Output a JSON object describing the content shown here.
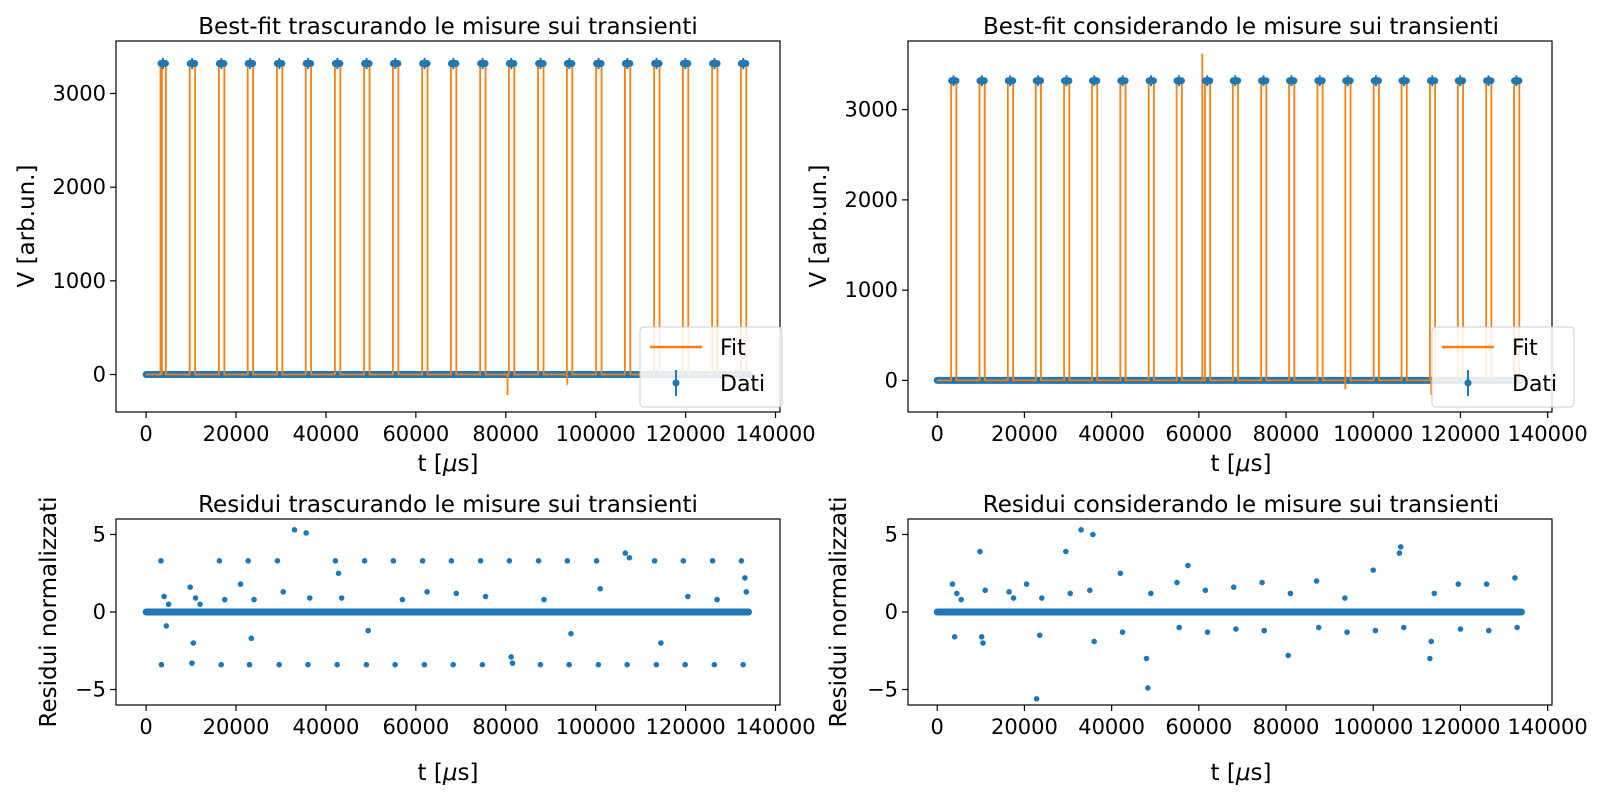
{
  "colors": {
    "fit": "#ff7f0e",
    "data": "#1f77b4",
    "frame": "#000000",
    "legend_frame": "#cccccc"
  },
  "chart_data": [
    {
      "id": "fit-no-transients",
      "type": "line",
      "title": "Best-fit trascurando le misure sui transienti",
      "xlabel": "t [μs]",
      "ylabel": "V [arb.un.]",
      "xlim": [
        -6700,
        141000
      ],
      "ylim": [
        -400,
        3560
      ],
      "xticks": [
        0,
        20000,
        40000,
        60000,
        80000,
        100000,
        120000,
        140000
      ],
      "xtick_labels": [
        "0",
        "20000",
        "40000",
        "60000",
        "80000",
        "100000",
        "120000",
        "140000"
      ],
      "yticks": [
        0,
        1000,
        2000,
        3000
      ],
      "ytick_labels": [
        "0",
        "1000",
        "2000",
        "3000"
      ],
      "grid": false,
      "legend": {
        "position": "lower-right",
        "entries": [
          "Fit",
          "Dati"
        ]
      },
      "series": [
        {
          "name": "Fit",
          "kind": "square-wave",
          "low": 0,
          "high": 3320,
          "pulse_starts": [
            3200,
            9700,
            16200,
            22600,
            29100,
            35500,
            42000,
            48500,
            54900,
            61400,
            67800,
            74300,
            80700,
            87200,
            93600,
            100100,
            106500,
            113000,
            119400,
            125900,
            132300
          ],
          "pulse_width": 1200,
          "spikes": [
            [
              3500,
              3360
            ],
            [
              80400,
              -220
            ],
            [
              93700,
              -110
            ]
          ]
        },
        {
          "name": "Dati",
          "kind": "points-with-error",
          "low": 0,
          "high": 3320,
          "x_range": [
            0,
            134000
          ]
        }
      ]
    },
    {
      "id": "fit-with-transients",
      "type": "line",
      "title": "Best-fit considerando le misure sui transienti",
      "xlabel": "t [μs]",
      "ylabel": "V [arb.un.]",
      "xlim": [
        -6700,
        141000
      ],
      "ylim": [
        -350,
        3760
      ],
      "xticks": [
        0,
        20000,
        40000,
        60000,
        80000,
        100000,
        120000,
        140000
      ],
      "xtick_labels": [
        "0",
        "20000",
        "40000",
        "60000",
        "80000",
        "100000",
        "120000",
        "140000"
      ],
      "yticks": [
        0,
        1000,
        2000,
        3000
      ],
      "ytick_labels": [
        "0",
        "1000",
        "2000",
        "3000"
      ],
      "grid": false,
      "legend": {
        "position": "lower-right",
        "entries": [
          "Fit",
          "Dati"
        ]
      },
      "series": [
        {
          "name": "Fit",
          "kind": "square-wave",
          "low": 0,
          "high": 3320,
          "pulse_starts": [
            3200,
            9700,
            16200,
            22600,
            29100,
            35500,
            42000,
            48500,
            54900,
            61400,
            67800,
            74300,
            80700,
            87200,
            93600,
            100100,
            106500,
            113000,
            119400,
            125900,
            132300
          ],
          "pulse_width": 1200,
          "spikes": [
            [
              60800,
              3620
            ],
            [
              93600,
              -100
            ],
            [
              113300,
              -160
            ]
          ]
        },
        {
          "name": "Dati",
          "kind": "points-with-error",
          "low": 0,
          "high": 3320,
          "x_range": [
            0,
            134000
          ]
        }
      ]
    },
    {
      "id": "residuals-no-transients",
      "type": "scatter",
      "title": "Residui trascurando le misure sui transienti",
      "xlabel": "t [μs]",
      "ylabel": "Residui normalizzati",
      "xlim": [
        -6700,
        141000
      ],
      "ylim": [
        -6,
        6
      ],
      "xticks": [
        0,
        20000,
        40000,
        60000,
        80000,
        100000,
        120000,
        140000
      ],
      "xtick_labels": [
        "0",
        "20000",
        "40000",
        "60000",
        "80000",
        "100000",
        "120000",
        "140000"
      ],
      "yticks": [
        -5,
        0,
        5
      ],
      "ytick_labels": [
        "−5",
        "0",
        "5"
      ],
      "grid": false,
      "baseline": {
        "value": 0,
        "x_range": [
          0,
          134000
        ]
      },
      "points": [
        [
          3300,
          3.3
        ],
        [
          3400,
          -3.4
        ],
        [
          4000,
          1.0
        ],
        [
          4500,
          -0.9
        ],
        [
          5000,
          0.5
        ],
        [
          9800,
          1.6
        ],
        [
          10200,
          -3.3
        ],
        [
          10500,
          -2.0
        ],
        [
          11000,
          0.9
        ],
        [
          12000,
          0.5
        ],
        [
          16300,
          3.3
        ],
        [
          16700,
          -3.4
        ],
        [
          17500,
          0.8
        ],
        [
          21000,
          1.8
        ],
        [
          22700,
          3.3
        ],
        [
          23000,
          -3.4
        ],
        [
          23400,
          -1.7
        ],
        [
          24000,
          0.8
        ],
        [
          29200,
          3.3
        ],
        [
          29600,
          -3.4
        ],
        [
          30500,
          1.3
        ],
        [
          33000,
          5.3
        ],
        [
          35600,
          5.1
        ],
        [
          36000,
          -3.4
        ],
        [
          36400,
          0.9
        ],
        [
          42100,
          3.3
        ],
        [
          42500,
          -3.4
        ],
        [
          42800,
          2.5
        ],
        [
          43500,
          0.9
        ],
        [
          48600,
          3.3
        ],
        [
          49000,
          -3.4
        ],
        [
          49400,
          -1.2
        ],
        [
          55000,
          3.3
        ],
        [
          55400,
          -3.4
        ],
        [
          57000,
          0.8
        ],
        [
          61500,
          3.3
        ],
        [
          61900,
          -3.4
        ],
        [
          62500,
          1.3
        ],
        [
          67900,
          3.3
        ],
        [
          68300,
          -3.4
        ],
        [
          69000,
          1.2
        ],
        [
          74400,
          3.3
        ],
        [
          74800,
          -3.4
        ],
        [
          75500,
          1.0
        ],
        [
          80800,
          3.3
        ],
        [
          81200,
          -2.9
        ],
        [
          81500,
          -3.3
        ],
        [
          87300,
          3.3
        ],
        [
          87700,
          -3.4
        ],
        [
          88500,
          0.8
        ],
        [
          93700,
          3.3
        ],
        [
          94100,
          -3.4
        ],
        [
          94500,
          -1.4
        ],
        [
          100200,
          3.3
        ],
        [
          100600,
          -3.4
        ],
        [
          101000,
          1.5
        ],
        [
          106600,
          3.8
        ],
        [
          107000,
          -3.4
        ],
        [
          107500,
          3.5
        ],
        [
          113100,
          3.3
        ],
        [
          113500,
          -3.4
        ],
        [
          114500,
          -2.0
        ],
        [
          119500,
          3.3
        ],
        [
          119900,
          -3.4
        ],
        [
          120500,
          1.0
        ],
        [
          126000,
          3.3
        ],
        [
          126400,
          -3.4
        ],
        [
          127000,
          0.8
        ],
        [
          132400,
          3.3
        ],
        [
          132800,
          -3.4
        ],
        [
          133200,
          2.2
        ],
        [
          133500,
          1.3
        ]
      ]
    },
    {
      "id": "residuals-with-transients",
      "type": "scatter",
      "title": "Residui considerando le misure sui transienti",
      "xlabel": "t [μs]",
      "ylabel": "Residui normalizzati",
      "xlim": [
        -6700,
        141000
      ],
      "ylim": [
        -6,
        6
      ],
      "xticks": [
        0,
        20000,
        40000,
        60000,
        80000,
        100000,
        120000,
        140000
      ],
      "xtick_labels": [
        "0",
        "20000",
        "40000",
        "60000",
        "80000",
        "100000",
        "120000",
        "140000"
      ],
      "yticks": [
        -5,
        0,
        5
      ],
      "ytick_labels": [
        "−5",
        "0",
        "5"
      ],
      "grid": false,
      "baseline": {
        "value": 0,
        "x_range": [
          0,
          134000
        ]
      },
      "points": [
        [
          3500,
          1.8
        ],
        [
          4000,
          -1.6
        ],
        [
          4500,
          1.2
        ],
        [
          5500,
          0.8
        ],
        [
          9800,
          3.9
        ],
        [
          10200,
          -1.6
        ],
        [
          10500,
          -2.0
        ],
        [
          11000,
          1.4
        ],
        [
          16500,
          1.3
        ],
        [
          17500,
          0.9
        ],
        [
          20500,
          1.8
        ],
        [
          22800,
          -5.6
        ],
        [
          23500,
          -1.5
        ],
        [
          24000,
          0.9
        ],
        [
          29500,
          3.9
        ],
        [
          30500,
          1.2
        ],
        [
          33000,
          5.3
        ],
        [
          35000,
          1.4
        ],
        [
          35700,
          5.0
        ],
        [
          36000,
          -1.9
        ],
        [
          42000,
          2.5
        ],
        [
          42500,
          -1.3
        ],
        [
          48000,
          -3.0
        ],
        [
          48300,
          -4.9
        ],
        [
          49000,
          1.2
        ],
        [
          55000,
          1.9
        ],
        [
          55500,
          -1.0
        ],
        [
          57500,
          3.0
        ],
        [
          61500,
          1.4
        ],
        [
          62000,
          -1.3
        ],
        [
          68000,
          1.6
        ],
        [
          68500,
          -1.1
        ],
        [
          74500,
          1.9
        ],
        [
          75000,
          -1.2
        ],
        [
          80500,
          -2.8
        ],
        [
          81000,
          1.2
        ],
        [
          87000,
          2.0
        ],
        [
          87500,
          -1.0
        ],
        [
          93500,
          0.9
        ],
        [
          94000,
          -1.3
        ],
        [
          100000,
          2.7
        ],
        [
          100500,
          -1.2
        ],
        [
          106000,
          3.8
        ],
        [
          106300,
          4.2
        ],
        [
          107000,
          -1.0
        ],
        [
          113000,
          -3.0
        ],
        [
          113300,
          -1.9
        ],
        [
          114000,
          1.2
        ],
        [
          119500,
          1.8
        ],
        [
          120000,
          -1.1
        ],
        [
          126000,
          1.8
        ],
        [
          126500,
          -1.2
        ],
        [
          132500,
          2.2
        ],
        [
          133000,
          -1.0
        ]
      ]
    }
  ]
}
